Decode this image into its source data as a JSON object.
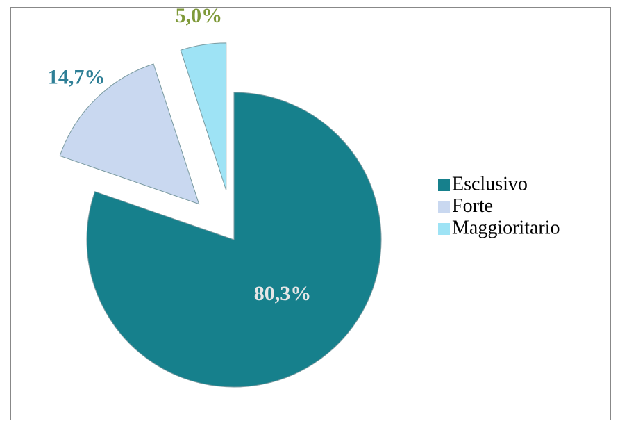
{
  "chart_data": {
    "type": "pie",
    "categories": [
      "Esclusivo",
      "Forte",
      "Maggioritario"
    ],
    "values": [
      80.3,
      14.7,
      5.0
    ],
    "value_labels": [
      "80,3%",
      "14,7%",
      "5,0%"
    ],
    "colors": [
      "#16808c",
      "#c9d8f0",
      "#9ee3f5"
    ],
    "label_colors": [
      "#e6e6e6",
      "#2e7f96",
      "#7f9a3a"
    ],
    "legend": "right"
  }
}
